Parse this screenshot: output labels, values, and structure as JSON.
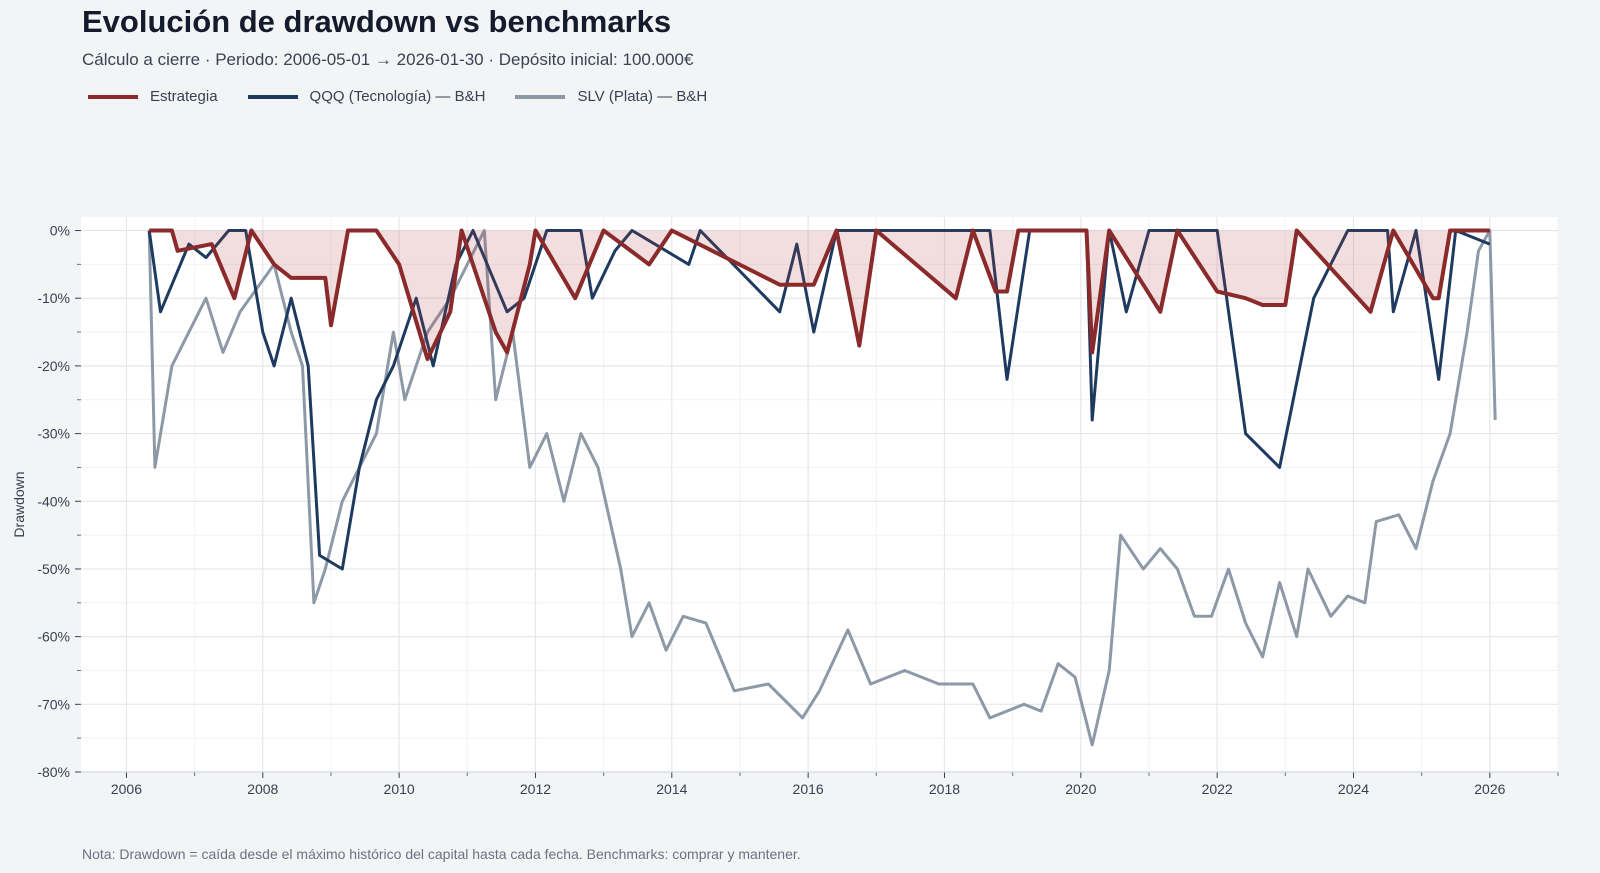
{
  "chart_data": {
    "type": "line",
    "title": "Evolución de drawdown vs benchmarks",
    "subtitle": "Cálculo a cierre · Periodo: 2006-05-01 → 2026-01-30 · Depósito inicial: 100.000€",
    "xlabel": "",
    "ylabel": "Drawdown",
    "xlim": [
      "2005-05",
      "2027-01"
    ],
    "ylim": [
      -80,
      2
    ],
    "grid": true,
    "legend_position": "top-left",
    "xticks": [
      "2006",
      "2008",
      "2010",
      "2012",
      "2014",
      "2016",
      "2018",
      "2020",
      "2022",
      "2024",
      "2026"
    ],
    "yticks": [
      {
        "value": 0,
        "label": "0%"
      },
      {
        "value": -10,
        "label": "-10%"
      },
      {
        "value": -20,
        "label": "-20%"
      },
      {
        "value": -30,
        "label": "-30%"
      },
      {
        "value": -40,
        "label": "-40%"
      },
      {
        "value": -50,
        "label": "-50%"
      },
      {
        "value": -60,
        "label": "-60%"
      },
      {
        "value": -70,
        "label": "-70%"
      },
      {
        "value": -80,
        "label": "-80%"
      }
    ],
    "series": [
      {
        "name": "SLV (Plata) — B&H",
        "color": "#8e99a8",
        "fill": false,
        "points": [
          [
            "2006-05",
            0
          ],
          [
            "2006-06",
            -35
          ],
          [
            "2006-09",
            -20
          ],
          [
            "2006-12",
            -15
          ],
          [
            "2007-03",
            -10
          ],
          [
            "2007-06",
            -18
          ],
          [
            "2007-09",
            -12
          ],
          [
            "2008-03",
            -5
          ],
          [
            "2008-06",
            -15
          ],
          [
            "2008-08",
            -20
          ],
          [
            "2008-10",
            -55
          ],
          [
            "2008-12",
            -50
          ],
          [
            "2009-03",
            -40
          ],
          [
            "2009-06",
            -35
          ],
          [
            "2009-09",
            -30
          ],
          [
            "2009-12",
            -15
          ],
          [
            "2010-02",
            -25
          ],
          [
            "2010-06",
            -15
          ],
          [
            "2010-10",
            -10
          ],
          [
            "2011-01",
            -5
          ],
          [
            "2011-04",
            0
          ],
          [
            "2011-06",
            -25
          ],
          [
            "2011-09",
            -15
          ],
          [
            "2011-12",
            -35
          ],
          [
            "2012-03",
            -30
          ],
          [
            "2012-06",
            -40
          ],
          [
            "2012-09",
            -30
          ],
          [
            "2012-12",
            -35
          ],
          [
            "2013-04",
            -50
          ],
          [
            "2013-06",
            -60
          ],
          [
            "2013-09",
            -55
          ],
          [
            "2013-12",
            -62
          ],
          [
            "2014-03",
            -57
          ],
          [
            "2014-07",
            -58
          ],
          [
            "2014-12",
            -68
          ],
          [
            "2015-06",
            -67
          ],
          [
            "2015-12",
            -72
          ],
          [
            "2016-03",
            -68
          ],
          [
            "2016-08",
            -59
          ],
          [
            "2016-12",
            -67
          ],
          [
            "2017-06",
            -65
          ],
          [
            "2017-12",
            -67
          ],
          [
            "2018-06",
            -67
          ],
          [
            "2018-09",
            -72
          ],
          [
            "2019-03",
            -70
          ],
          [
            "2019-06",
            -71
          ],
          [
            "2019-09",
            -64
          ],
          [
            "2019-12",
            -66
          ],
          [
            "2020-03",
            -76
          ],
          [
            "2020-06",
            -65
          ],
          [
            "2020-08",
            -45
          ],
          [
            "2020-12",
            -50
          ],
          [
            "2021-03",
            -47
          ],
          [
            "2021-06",
            -50
          ],
          [
            "2021-09",
            -57
          ],
          [
            "2021-12",
            -57
          ],
          [
            "2022-03",
            -50
          ],
          [
            "2022-06",
            -58
          ],
          [
            "2022-09",
            -63
          ],
          [
            "2022-12",
            -52
          ],
          [
            "2023-03",
            -60
          ],
          [
            "2023-05",
            -50
          ],
          [
            "2023-09",
            -57
          ],
          [
            "2023-12",
            -54
          ],
          [
            "2024-03",
            -55
          ],
          [
            "2024-05",
            -43
          ],
          [
            "2024-09",
            -42
          ],
          [
            "2024-12",
            -47
          ],
          [
            "2025-03",
            -37
          ],
          [
            "2025-06",
            -30
          ],
          [
            "2025-09",
            -15
          ],
          [
            "2025-11",
            -3
          ],
          [
            "2026-01",
            0
          ],
          [
            "2026-01-30",
            -28
          ]
        ]
      },
      {
        "name": "QQQ (Tecnología) — B&H",
        "color": "#1e3a5f",
        "fill": false,
        "points": [
          [
            "2006-05",
            0
          ],
          [
            "2006-07",
            -12
          ],
          [
            "2006-09",
            -8
          ],
          [
            "2006-12",
            -2
          ],
          [
            "2007-03",
            -4
          ],
          [
            "2007-07",
            0
          ],
          [
            "2007-10",
            0
          ],
          [
            "2008-01",
            -15
          ],
          [
            "2008-03",
            -20
          ],
          [
            "2008-06",
            -10
          ],
          [
            "2008-09",
            -20
          ],
          [
            "2008-11",
            -48
          ],
          [
            "2009-03",
            -50
          ],
          [
            "2009-06",
            -35
          ],
          [
            "2009-09",
            -25
          ],
          [
            "2009-12",
            -20
          ],
          [
            "2010-04",
            -10
          ],
          [
            "2010-07",
            -20
          ],
          [
            "2010-11",
            -5
          ],
          [
            "2011-02",
            0
          ],
          [
            "2011-08",
            -12
          ],
          [
            "2011-11",
            -10
          ],
          [
            "2012-03",
            0
          ],
          [
            "2012-09",
            0
          ],
          [
            "2012-11",
            -10
          ],
          [
            "2013-03",
            -3
          ],
          [
            "2013-06",
            0
          ],
          [
            "2014-04",
            -5
          ],
          [
            "2014-06",
            0
          ],
          [
            "2015-08",
            -12
          ],
          [
            "2015-11",
            -2
          ],
          [
            "2016-02",
            -15
          ],
          [
            "2016-06",
            0
          ],
          [
            "2018-09",
            0
          ],
          [
            "2018-12",
            -22
          ],
          [
            "2019-04",
            0
          ],
          [
            "2020-02",
            0
          ],
          [
            "2020-03",
            -28
          ],
          [
            "2020-06",
            0
          ],
          [
            "2020-09",
            -12
          ],
          [
            "2021-01",
            0
          ],
          [
            "2022-01",
            0
          ],
          [
            "2022-06",
            -30
          ],
          [
            "2022-12",
            -35
          ],
          [
            "2023-06",
            -10
          ],
          [
            "2023-12",
            0
          ],
          [
            "2024-07",
            0
          ],
          [
            "2024-08",
            -12
          ],
          [
            "2024-12",
            0
          ],
          [
            "2025-04",
            -22
          ],
          [
            "2025-07",
            0
          ],
          [
            "2026-01",
            -2
          ]
        ]
      },
      {
        "name": "Estrategia",
        "color": "#8b2a2a",
        "fill": true,
        "points": [
          [
            "2006-05",
            0
          ],
          [
            "2006-09",
            0
          ],
          [
            "2006-10",
            -3
          ],
          [
            "2007-04",
            -2
          ],
          [
            "2007-08",
            -10
          ],
          [
            "2007-11",
            0
          ],
          [
            "2008-03",
            -5
          ],
          [
            "2008-06",
            -7
          ],
          [
            "2008-12",
            -7
          ],
          [
            "2009-01",
            -14
          ],
          [
            "2009-04",
            0
          ],
          [
            "2009-09",
            0
          ],
          [
            "2010-01",
            -5
          ],
          [
            "2010-06",
            -19
          ],
          [
            "2010-10",
            -12
          ],
          [
            "2010-12",
            0
          ],
          [
            "2011-06",
            -15
          ],
          [
            "2011-08",
            -18
          ],
          [
            "2011-12",
            -5
          ],
          [
            "2012-01",
            0
          ],
          [
            "2012-08",
            -10
          ],
          [
            "2013-01",
            0
          ],
          [
            "2013-09",
            -5
          ],
          [
            "2014-01",
            0
          ],
          [
            "2015-08",
            -8
          ],
          [
            "2016-02",
            -8
          ],
          [
            "2016-06",
            0
          ],
          [
            "2016-10",
            -17
          ],
          [
            "2017-01",
            0
          ],
          [
            "2018-03",
            -10
          ],
          [
            "2018-06",
            0
          ],
          [
            "2018-10",
            -9
          ],
          [
            "2018-12",
            -9
          ],
          [
            "2019-02",
            0
          ],
          [
            "2020-02",
            0
          ],
          [
            "2020-03",
            -18
          ],
          [
            "2020-06",
            0
          ],
          [
            "2021-03",
            -12
          ],
          [
            "2021-06",
            0
          ],
          [
            "2022-01",
            -9
          ],
          [
            "2022-06",
            -10
          ],
          [
            "2022-09",
            -11
          ],
          [
            "2023-01",
            -11
          ],
          [
            "2023-03",
            0
          ],
          [
            "2024-04",
            -12
          ],
          [
            "2024-08",
            0
          ],
          [
            "2025-03",
            -10
          ],
          [
            "2025-04",
            -10
          ],
          [
            "2025-06",
            0
          ],
          [
            "2026-01",
            0
          ]
        ]
      }
    ]
  },
  "legend": [
    {
      "label": "Estrategia",
      "color": "#8b2a2a"
    },
    {
      "label": "QQQ (Tecnología) — B&H",
      "color": "#1e3a5f"
    },
    {
      "label": "SLV (Plata) — B&H",
      "color": "#8e99a8"
    }
  ],
  "note": "Nota: Drawdown = caída desde el máximo histórico del capital hasta cada fecha. Benchmarks: comprar y mantener."
}
